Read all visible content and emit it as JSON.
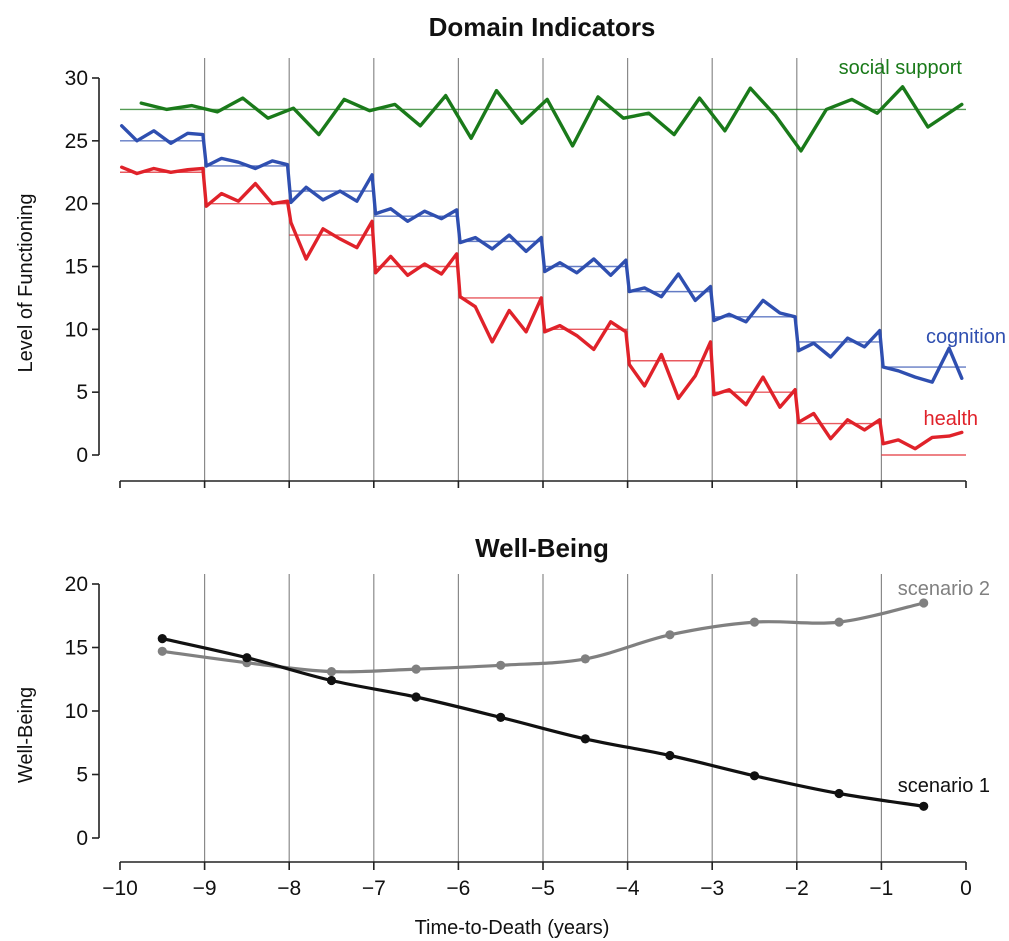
{
  "chart_data": [
    {
      "type": "line",
      "title": "Domain Indicators",
      "xlabel": "",
      "ylabel": "Level of Functioning",
      "xlim": [
        -10,
        0
      ],
      "ylim": [
        -2,
        32
      ],
      "yticks": [
        0,
        5,
        10,
        15,
        20,
        25,
        30
      ],
      "vertical_grid_at": [
        -9,
        -8,
        -7,
        -6,
        -5,
        -4,
        -3,
        -2,
        -1
      ],
      "series": [
        {
          "name": "social support",
          "color": "#1a7a1a",
          "x": [
            -9.75,
            -9.45,
            -9.15,
            -8.85,
            -8.55,
            -8.25,
            -7.95,
            -7.65,
            -7.35,
            -7.05,
            -6.75,
            -6.45,
            -6.15,
            -5.85,
            -5.55,
            -5.25,
            -4.95,
            -4.65,
            -4.35,
            -4.05,
            -3.75,
            -3.45,
            -3.15,
            -2.85,
            -2.55,
            -2.25,
            -1.95,
            -1.65,
            -1.35,
            -1.05,
            -0.75,
            -0.45,
            -0.05
          ],
          "values": [
            28.0,
            27.5,
            27.8,
            27.3,
            28.4,
            26.8,
            27.6,
            25.5,
            28.3,
            27.4,
            27.9,
            26.2,
            28.6,
            25.2,
            29.0,
            26.4,
            28.3,
            24.6,
            28.5,
            26.8,
            27.2,
            25.5,
            28.4,
            25.8,
            29.2,
            27.0,
            24.2,
            27.5,
            28.3,
            27.2,
            29.3,
            26.1,
            27.9
          ],
          "mean_steps": [
            27.5,
            27.5,
            27.5,
            27.5,
            27.5,
            27.5,
            27.5,
            27.5,
            27.5,
            27.5
          ]
        },
        {
          "name": "cognition",
          "color": "#2f4fb0",
          "x": [
            -9.98,
            -9.8,
            -9.6,
            -9.4,
            -9.2,
            -9.02,
            -8.98,
            -8.8,
            -8.6,
            -8.4,
            -8.2,
            -8.02,
            -7.98,
            -7.8,
            -7.6,
            -7.4,
            -7.2,
            -7.02,
            -6.98,
            -6.8,
            -6.6,
            -6.4,
            -6.2,
            -6.02,
            -5.98,
            -5.8,
            -5.6,
            -5.4,
            -5.2,
            -5.02,
            -4.98,
            -4.8,
            -4.6,
            -4.4,
            -4.2,
            -4.02,
            -3.98,
            -3.8,
            -3.6,
            -3.4,
            -3.2,
            -3.02,
            -2.98,
            -2.8,
            -2.6,
            -2.4,
            -2.2,
            -2.02,
            -1.98,
            -1.8,
            -1.6,
            -1.4,
            -1.2,
            -1.02,
            -0.98,
            -0.8,
            -0.6,
            -0.4,
            -0.2,
            -0.05
          ],
          "values": [
            26.2,
            25.0,
            25.8,
            24.8,
            25.6,
            25.5,
            23.0,
            23.6,
            23.3,
            22.8,
            23.4,
            23.1,
            20.1,
            21.3,
            20.3,
            21.0,
            20.2,
            22.3,
            19.2,
            19.6,
            18.6,
            19.4,
            18.8,
            19.5,
            16.9,
            17.3,
            16.4,
            17.5,
            16.2,
            17.3,
            14.6,
            15.3,
            14.5,
            15.6,
            14.3,
            15.5,
            13.0,
            13.3,
            12.6,
            14.4,
            12.3,
            13.4,
            10.7,
            11.2,
            10.6,
            12.3,
            11.3,
            11.0,
            8.3,
            8.9,
            7.8,
            9.3,
            8.6,
            9.9,
            7.0,
            6.7,
            6.2,
            5.8,
            8.5,
            6.1
          ],
          "mean_steps": [
            25.0,
            23.0,
            21.0,
            19.0,
            17.0,
            15.0,
            13.0,
            11.0,
            9.0,
            7.0
          ]
        },
        {
          "name": "health",
          "color": "#e0222a",
          "x": [
            -9.98,
            -9.8,
            -9.6,
            -9.4,
            -9.2,
            -9.02,
            -8.98,
            -8.8,
            -8.6,
            -8.4,
            -8.2,
            -8.02,
            -7.98,
            -7.8,
            -7.6,
            -7.4,
            -7.2,
            -7.02,
            -6.98,
            -6.8,
            -6.6,
            -6.4,
            -6.2,
            -6.02,
            -5.98,
            -5.8,
            -5.6,
            -5.4,
            -5.2,
            -5.02,
            -4.98,
            -4.8,
            -4.6,
            -4.4,
            -4.2,
            -4.02,
            -3.98,
            -3.8,
            -3.6,
            -3.4,
            -3.2,
            -3.02,
            -2.98,
            -2.8,
            -2.6,
            -2.4,
            -2.2,
            -2.02,
            -1.98,
            -1.8,
            -1.6,
            -1.4,
            -1.2,
            -1.02,
            -0.98,
            -0.8,
            -0.6,
            -0.4,
            -0.2,
            -0.05
          ],
          "values": [
            22.9,
            22.4,
            22.8,
            22.5,
            22.7,
            22.8,
            19.8,
            20.8,
            20.2,
            21.6,
            20.0,
            20.2,
            18.5,
            15.6,
            18.0,
            17.2,
            16.5,
            18.6,
            14.5,
            15.8,
            14.3,
            15.2,
            14.4,
            16.0,
            12.6,
            11.8,
            9.0,
            11.5,
            9.8,
            12.5,
            9.8,
            10.3,
            9.5,
            8.4,
            10.6,
            9.8,
            7.2,
            5.5,
            8.0,
            4.5,
            6.3,
            9.0,
            4.8,
            5.2,
            4.0,
            6.2,
            3.8,
            5.2,
            2.6,
            3.3,
            1.3,
            2.8,
            2.0,
            2.8,
            0.9,
            1.2,
            0.5,
            1.4,
            1.5,
            1.8
          ],
          "mean_steps": [
            22.5,
            20.0,
            17.5,
            15.0,
            12.5,
            10.0,
            7.5,
            5.0,
            2.5,
            0.0
          ]
        }
      ]
    },
    {
      "type": "line",
      "title": "Well-Being",
      "xlabel": "Time-to-Death (years)",
      "ylabel": "Well-Being",
      "xlim": [
        -10,
        0
      ],
      "ylim": [
        -1,
        20
      ],
      "xticks": [
        -10,
        -9,
        -8,
        -7,
        -6,
        -5,
        -4,
        -3,
        -2,
        -1,
        0
      ],
      "xtick_labels": [
        "−10",
        "−9",
        "−8",
        "−7",
        "−6",
        "−5",
        "−4",
        "−3",
        "−2",
        "−1",
        "0"
      ],
      "yticks": [
        0,
        5,
        10,
        15,
        20
      ],
      "vertical_grid_at": [
        -9,
        -8,
        -7,
        -6,
        -5,
        -4,
        -3,
        -2,
        -1
      ],
      "series": [
        {
          "name": "scenario 2",
          "color": "#808080",
          "x": [
            -9.5,
            -8.5,
            -7.5,
            -6.5,
            -5.5,
            -4.5,
            -3.5,
            -2.5,
            -1.5,
            -0.5
          ],
          "values": [
            14.7,
            13.8,
            13.1,
            13.3,
            13.6,
            14.1,
            16.0,
            17.0,
            17.0,
            18.5
          ]
        },
        {
          "name": "scenario 1",
          "color": "#111111",
          "x": [
            -9.5,
            -8.5,
            -7.5,
            -6.5,
            -5.5,
            -4.5,
            -3.5,
            -2.5,
            -1.5,
            -0.5
          ],
          "values": [
            15.7,
            14.2,
            12.4,
            11.1,
            9.5,
            7.8,
            6.5,
            4.9,
            3.5,
            2.5
          ]
        }
      ]
    }
  ]
}
